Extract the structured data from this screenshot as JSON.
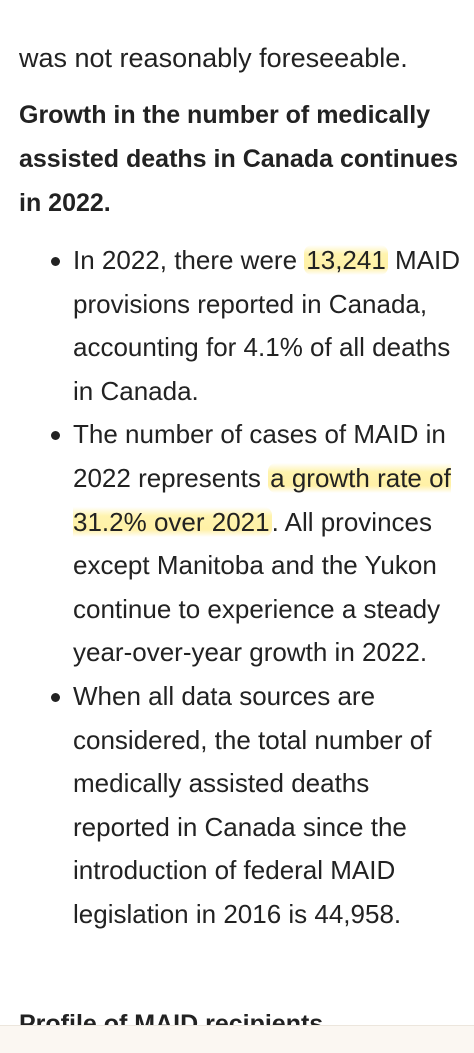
{
  "top_fragment": "was not reasonably foreseeable.",
  "heading": "Growth in the number of medically assisted deaths in Canada continues in 2022.",
  "bullets": [
    {
      "pre": "In 2022, there were",
      "highlight": "13,241",
      "post": "MAID provisions reported in Canada, accounting for 4.1% of all deaths in Canada."
    },
    {
      "pre": "The number of cases of MAID in 2022 represents",
      "highlight": "a growth rate of 31.2% over 2021",
      "post": ". All provinces except Manitoba and the Yukon continue to experience a steady year-over-year growth in 2022."
    },
    {
      "pre": "When all data sources are considered, the total number of medically assisted deaths reported in Canada since the introduction of federal MAID legislation in 2016 is 44,958."
    }
  ],
  "next_heading": "Profile of MAID recipients"
}
